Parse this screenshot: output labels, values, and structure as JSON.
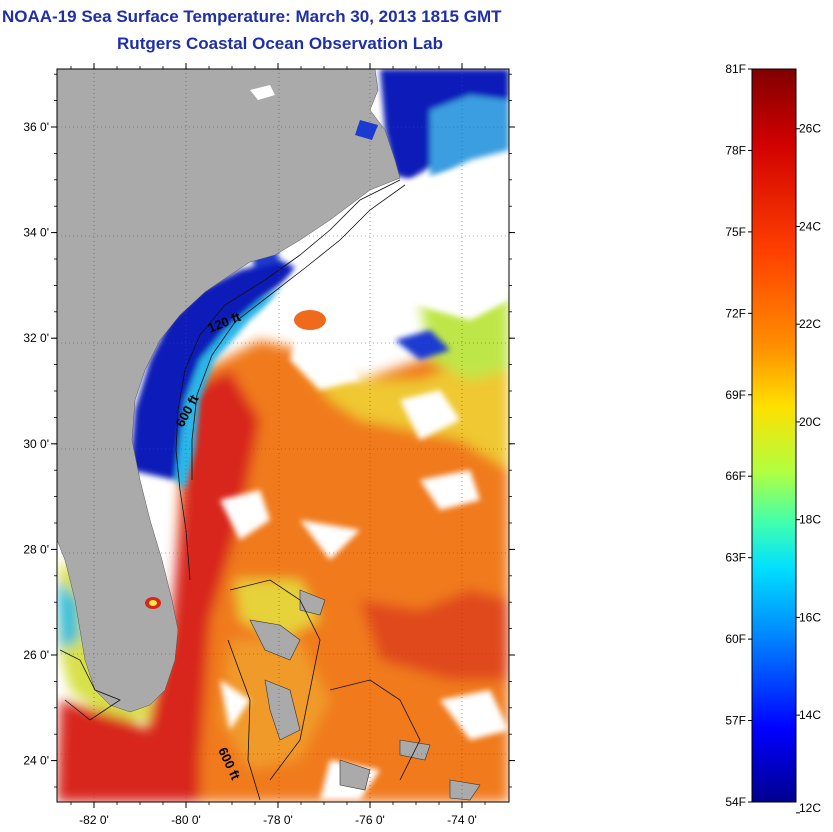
{
  "header": {
    "title_line1": "NOAA-19 Sea Surface Temperature:  March 30, 2013 1815 GMT",
    "title_line2": "Rutgers Coastal Ocean Observation Lab"
  },
  "map": {
    "x_ticks": [
      {
        "lon": -82,
        "label": "-82 0'"
      },
      {
        "lon": -80,
        "label": "-80 0'"
      },
      {
        "lon": -78,
        "label": "-78 0'"
      },
      {
        "lon": -76,
        "label": "-76 0'"
      },
      {
        "lon": -74,
        "label": "-74 0'"
      }
    ],
    "y_ticks": [
      {
        "lat": 36,
        "label": "36 0'"
      },
      {
        "lat": 34,
        "label": "34 0'"
      },
      {
        "lat": 32,
        "label": "32 0'"
      },
      {
        "lat": 30,
        "label": "30 0'"
      },
      {
        "lat": 28,
        "label": "28 0'"
      },
      {
        "lat": 26,
        "label": "26 0'"
      },
      {
        "lat": 24,
        "label": "24 0'"
      }
    ],
    "contour_labels": [
      "120 ft",
      "600 ft",
      "600 ft"
    ],
    "colors": {
      "land": "#aaaaaa",
      "cloud": "#ffffff",
      "cold": "#0b1ab8",
      "cool": "#2bb6e8",
      "mild": "#dfe84a",
      "warm": "#f07a1c",
      "hot": "#d8261a"
    }
  },
  "colorbar": {
    "fahrenheit_labels": [
      "81F",
      "78F",
      "75F",
      "72F",
      "69F",
      "66F",
      "63F",
      "60F",
      "57F",
      "54F"
    ],
    "celsius_labels": [
      "26C",
      "24C",
      "22C",
      "20C",
      "18C",
      "16C",
      "14C",
      "12C"
    ],
    "colors": [
      "#800000",
      "#ff0000",
      "#ff8000",
      "#ffff00",
      "#80ff80",
      "#00ffff",
      "#0080ff",
      "#0000ff",
      "#00008f"
    ]
  }
}
